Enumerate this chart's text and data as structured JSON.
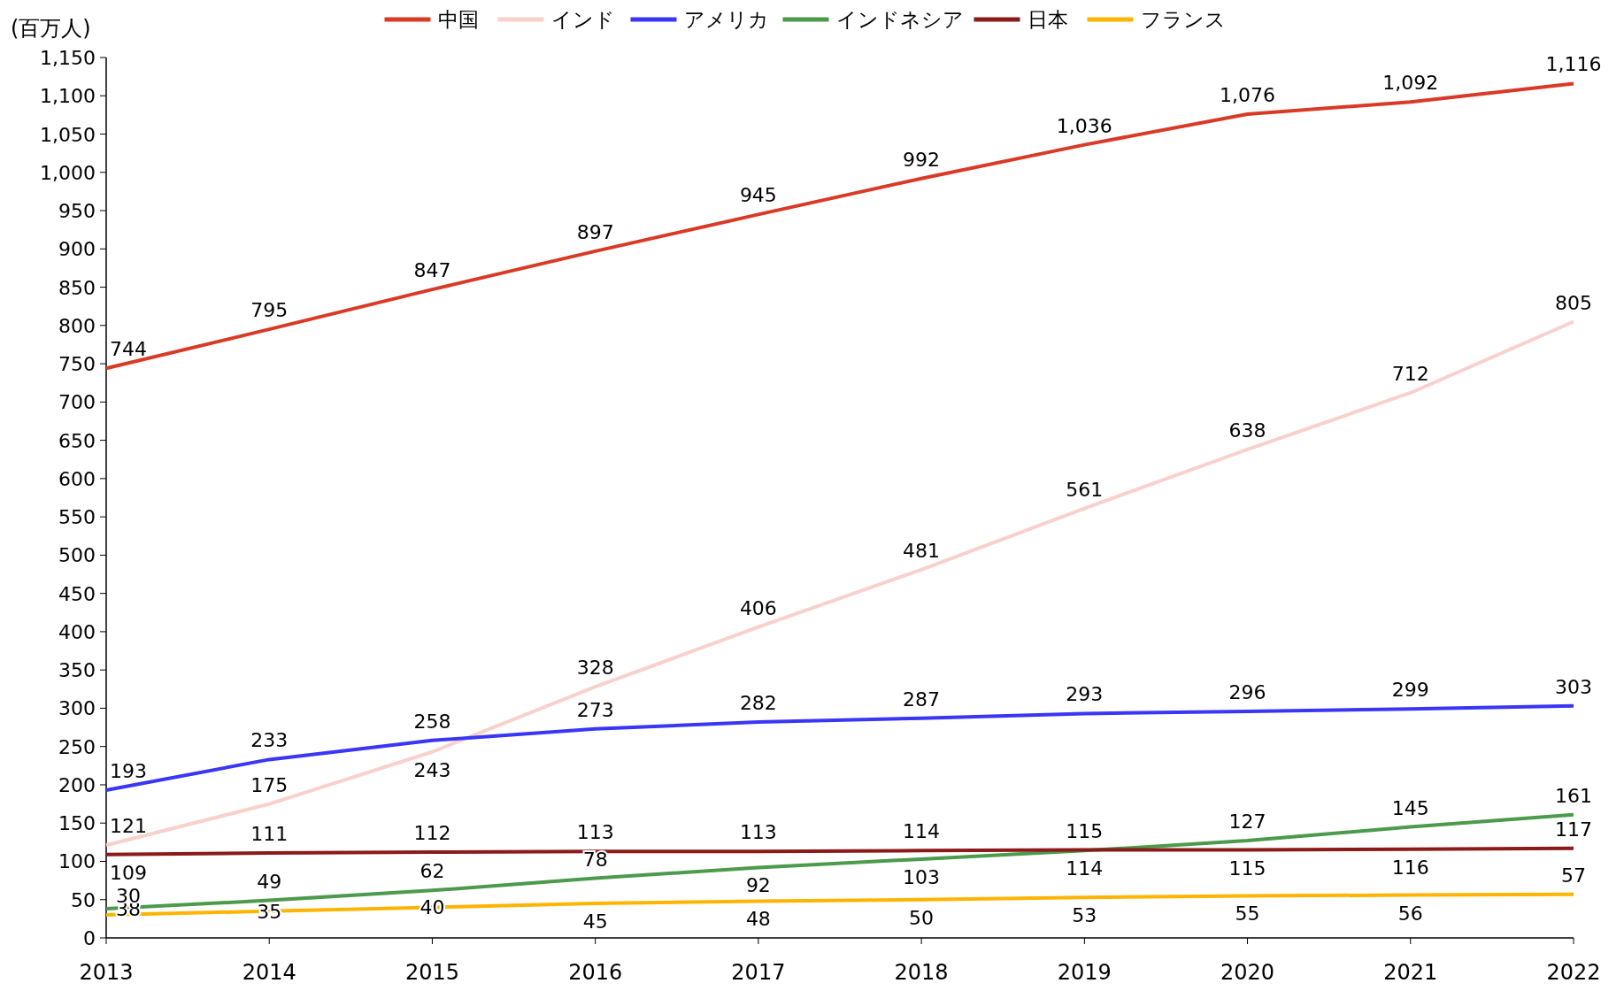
{
  "chart_data": {
    "type": "line",
    "ylabel": "(百万人)",
    "x": [
      2013,
      2014,
      2015,
      2016,
      2017,
      2018,
      2019,
      2020,
      2021,
      2022
    ],
    "xlim": [
      2013,
      2022
    ],
    "xticks": [
      2013,
      2014,
      2015,
      2016,
      2017,
      2018,
      2019,
      2020,
      2021,
      2022
    ],
    "ylim": [
      0,
      1150
    ],
    "yticks": [
      0,
      50,
      100,
      150,
      200,
      250,
      300,
      350,
      400,
      450,
      500,
      550,
      600,
      650,
      700,
      750,
      800,
      850,
      900,
      950,
      {
        "value": 1000,
        "label": "1,000"
      },
      {
        "value": 1050,
        "label": "1,050"
      },
      {
        "value": 1100,
        "label": "1,100"
      },
      {
        "value": 1150,
        "label": "1,150"
      }
    ],
    "grid": false,
    "legend": "top",
    "marker": "none",
    "line_style": "solid",
    "series": [
      {
        "name": "中国",
        "color": "#d93a26",
        "values": [
          744,
          795,
          847,
          897,
          945,
          992,
          1036,
          1076,
          1092,
          1116
        ],
        "value_labels": [
          "744",
          "795",
          "847",
          "897",
          "945",
          "992",
          "1,036",
          "1,076",
          "1,092",
          "1,116"
        ]
      },
      {
        "name": "インド",
        "color": "#f8d0cc",
        "values": [
          121,
          175,
          243,
          328,
          406,
          481,
          561,
          638,
          712,
          805
        ],
        "value_labels": [
          "121",
          "175",
          "243",
          "328",
          "406",
          "481",
          "561",
          "638",
          "712",
          "805"
        ]
      },
      {
        "name": "アメリカ",
        "color": "#3a36f5",
        "values": [
          193,
          233,
          258,
          273,
          282,
          287,
          293,
          296,
          299,
          303
        ],
        "value_labels": [
          "193",
          "233",
          "258",
          "273",
          "282",
          "287",
          "293",
          "296",
          "299",
          "303"
        ]
      },
      {
        "name": "インドネシア",
        "color": "#4c9a4c",
        "values": [
          38,
          49,
          62,
          78,
          92,
          103,
          114,
          127,
          145,
          161
        ],
        "value_labels": [
          "38",
          "49",
          "62",
          "78",
          "92",
          "103",
          "114",
          "127",
          "145",
          "161"
        ]
      },
      {
        "name": "日本",
        "color": "#8b1a1a",
        "values": [
          109,
          111,
          112,
          113,
          113,
          114,
          115,
          115,
          116,
          117
        ],
        "value_labels": [
          "109",
          "111",
          "112",
          "113",
          "113",
          "114",
          "115",
          "115",
          "116",
          "117"
        ]
      },
      {
        "name": "フランス",
        "color": "#ffb400",
        "values": [
          30,
          35,
          40,
          45,
          48,
          50,
          53,
          55,
          56,
          57
        ],
        "value_labels": [
          "30",
          "35",
          "40",
          "45",
          "48",
          "50",
          "53",
          "55",
          "56",
          "57"
        ]
      }
    ]
  }
}
